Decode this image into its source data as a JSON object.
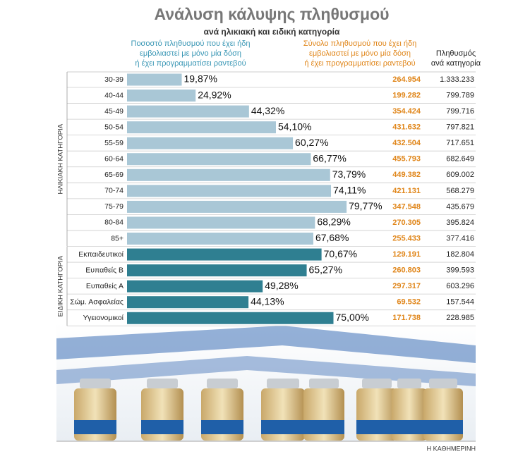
{
  "title": "Ανάλυση κάλυψης πληθυσμού",
  "subtitle": "ανά ηλικιακή και ειδική κατηγορία",
  "column_headers": [
    [
      "Ποσοστό πληθυσμού που έχει ήδη",
      "εμβολιαστεί με μόνο μία δόση",
      "ή έχει προγραμματίσει ραντεβού"
    ],
    [
      "Σύνολο πληθυσμού που έχει ήδη",
      "εμβολιαστεί με μόνο μία δόση",
      "ή έχει προγραμματίσει ραντεβού"
    ],
    [
      "Πληθυσμός",
      "ανά κατηγορία"
    ]
  ],
  "source": "Η ΚΑΘΗΜΕΡΙΝΗ",
  "chart_data": [
    {
      "type": "bar",
      "orientation": "horizontal",
      "group_label": "ΗΛΙΚΙΑΚΗ ΚΑΤΗΓΟΡΙΑ",
      "xlim": [
        0,
        100
      ],
      "categories": [
        "30-39",
        "40-44",
        "45-49",
        "50-54",
        "55-59",
        "60-64",
        "65-69",
        "70-74",
        "75-79",
        "80-84",
        "85+"
      ],
      "series": [
        {
          "type": "bar",
          "color": "#a9c7d6",
          "values": [
            19.87,
            24.92,
            44.32,
            54.1,
            60.27,
            66.77,
            73.79,
            74.11,
            79.77,
            68.29,
            67.68
          ],
          "value_labels": [
            "19,87%",
            "24,92%",
            "44,32%",
            "54,10%",
            "60,27%",
            "66,77%",
            "73,79%",
            "74,11%",
            "79,77%",
            "68,29%",
            "67,68%"
          ]
        },
        {
          "type": "text",
          "color": "#e0861a",
          "values": [
            264954,
            199282,
            354424,
            431632,
            432504,
            455793,
            449382,
            421131,
            347548,
            270305,
            255433
          ],
          "value_labels": [
            "264.954",
            "199.282",
            "354.424",
            "431.632",
            "432.504",
            "455.793",
            "449.382",
            "421.131",
            "347.548",
            "270.305",
            "255.433"
          ]
        },
        {
          "type": "text",
          "color": "#222222",
          "values": [
            1333233,
            799789,
            799716,
            797821,
            717651,
            682649,
            609002,
            568279,
            435679,
            395824,
            377416
          ],
          "value_labels": [
            "1.333.233",
            "799.789",
            "799.716",
            "797.821",
            "717.651",
            "682.649",
            "609.002",
            "568.279",
            "435.679",
            "395.824",
            "377.416"
          ]
        }
      ]
    },
    {
      "type": "bar",
      "orientation": "horizontal",
      "group_label": "ΕΙΔΙΚΗ ΚΑΤΗΓΟΡΙΑ",
      "xlim": [
        0,
        100
      ],
      "categories": [
        "Εκπαιδευτικοί",
        "Ευπαθείς Β",
        "Ευπαθείς Α",
        "Σώμ. Ασφαλείας",
        "Υγειονομικοί"
      ],
      "series": [
        {
          "type": "bar",
          "color": "#2f7f91",
          "values": [
            70.67,
            65.27,
            49.28,
            44.13,
            75.0
          ],
          "value_labels": [
            "70,67%",
            "65,27%",
            "49,28%",
            "44,13%",
            "75,00%"
          ]
        },
        {
          "type": "text",
          "color": "#e0861a",
          "values": [
            129191,
            260803,
            297317,
            69532,
            171738
          ],
          "value_labels": [
            "129.191",
            "260.803",
            "297.317",
            "69.532",
            "171.738"
          ]
        },
        {
          "type": "text",
          "color": "#222222",
          "values": [
            182804,
            399593,
            603296,
            157544,
            228985
          ],
          "value_labels": [
            "182.804",
            "399.593",
            "603.296",
            "157.544",
            "228.985"
          ]
        }
      ]
    }
  ]
}
